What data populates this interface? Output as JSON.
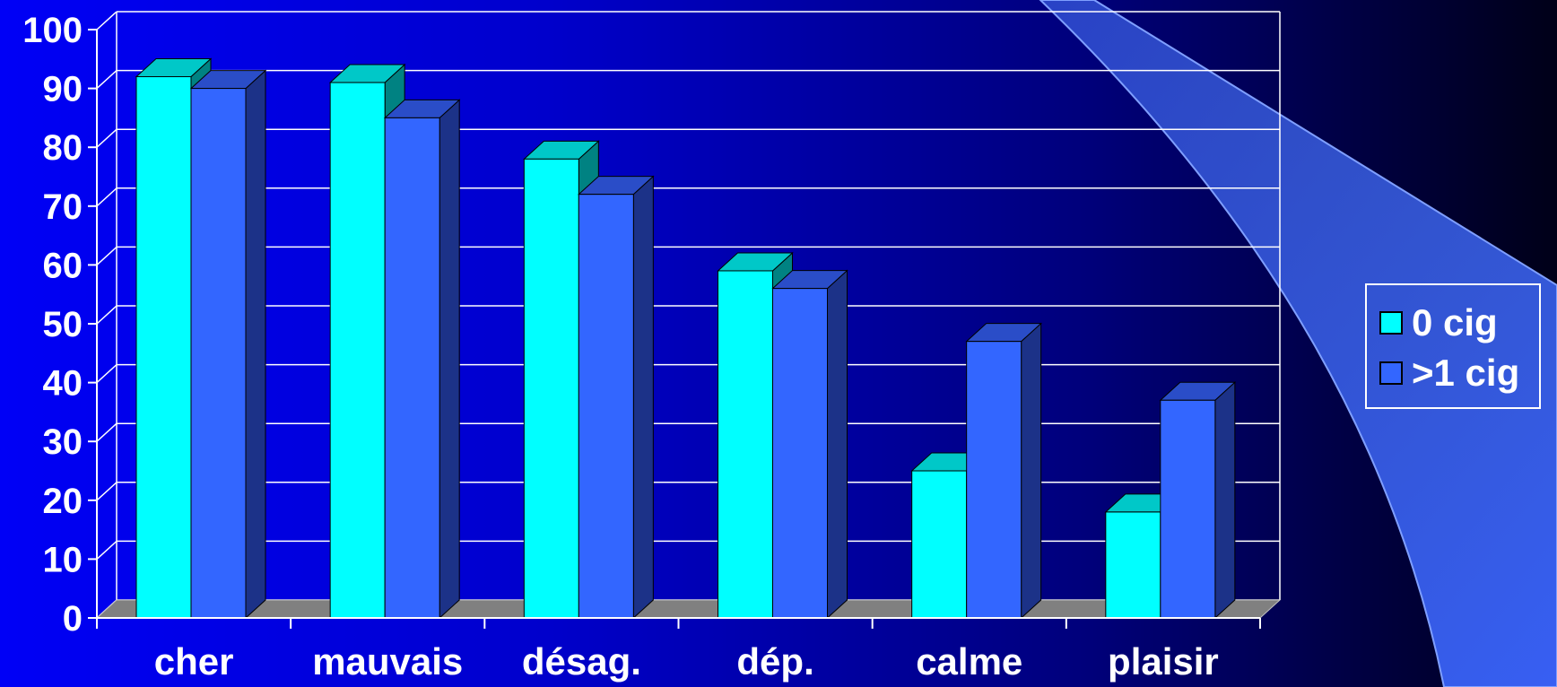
{
  "chart_data": {
    "type": "bar",
    "categories": [
      "cher",
      "mauvais",
      "désag.",
      "dép.",
      "calme",
      "plaisir"
    ],
    "series": [
      {
        "name": "0 cig",
        "values": [
          92,
          91,
          78,
          59,
          25,
          18
        ],
        "color": "#00ffff",
        "top_color": "#00c8c8",
        "side_color": "#008282"
      },
      {
        "name": ">1 cig",
        "values": [
          90,
          85,
          72,
          56,
          47,
          37
        ],
        "color": "#3366ff",
        "top_color": "#2a4dc8",
        "side_color": "#1c3288"
      }
    ],
    "y_ticks": [
      "0",
      "10",
      "20",
      "30",
      "40",
      "50",
      "60",
      "70",
      "80",
      "90",
      "100"
    ],
    "ylim": [
      0,
      100
    ],
    "grid": true,
    "legend_position": "right",
    "title": "",
    "xlabel": "",
    "ylabel": ""
  }
}
